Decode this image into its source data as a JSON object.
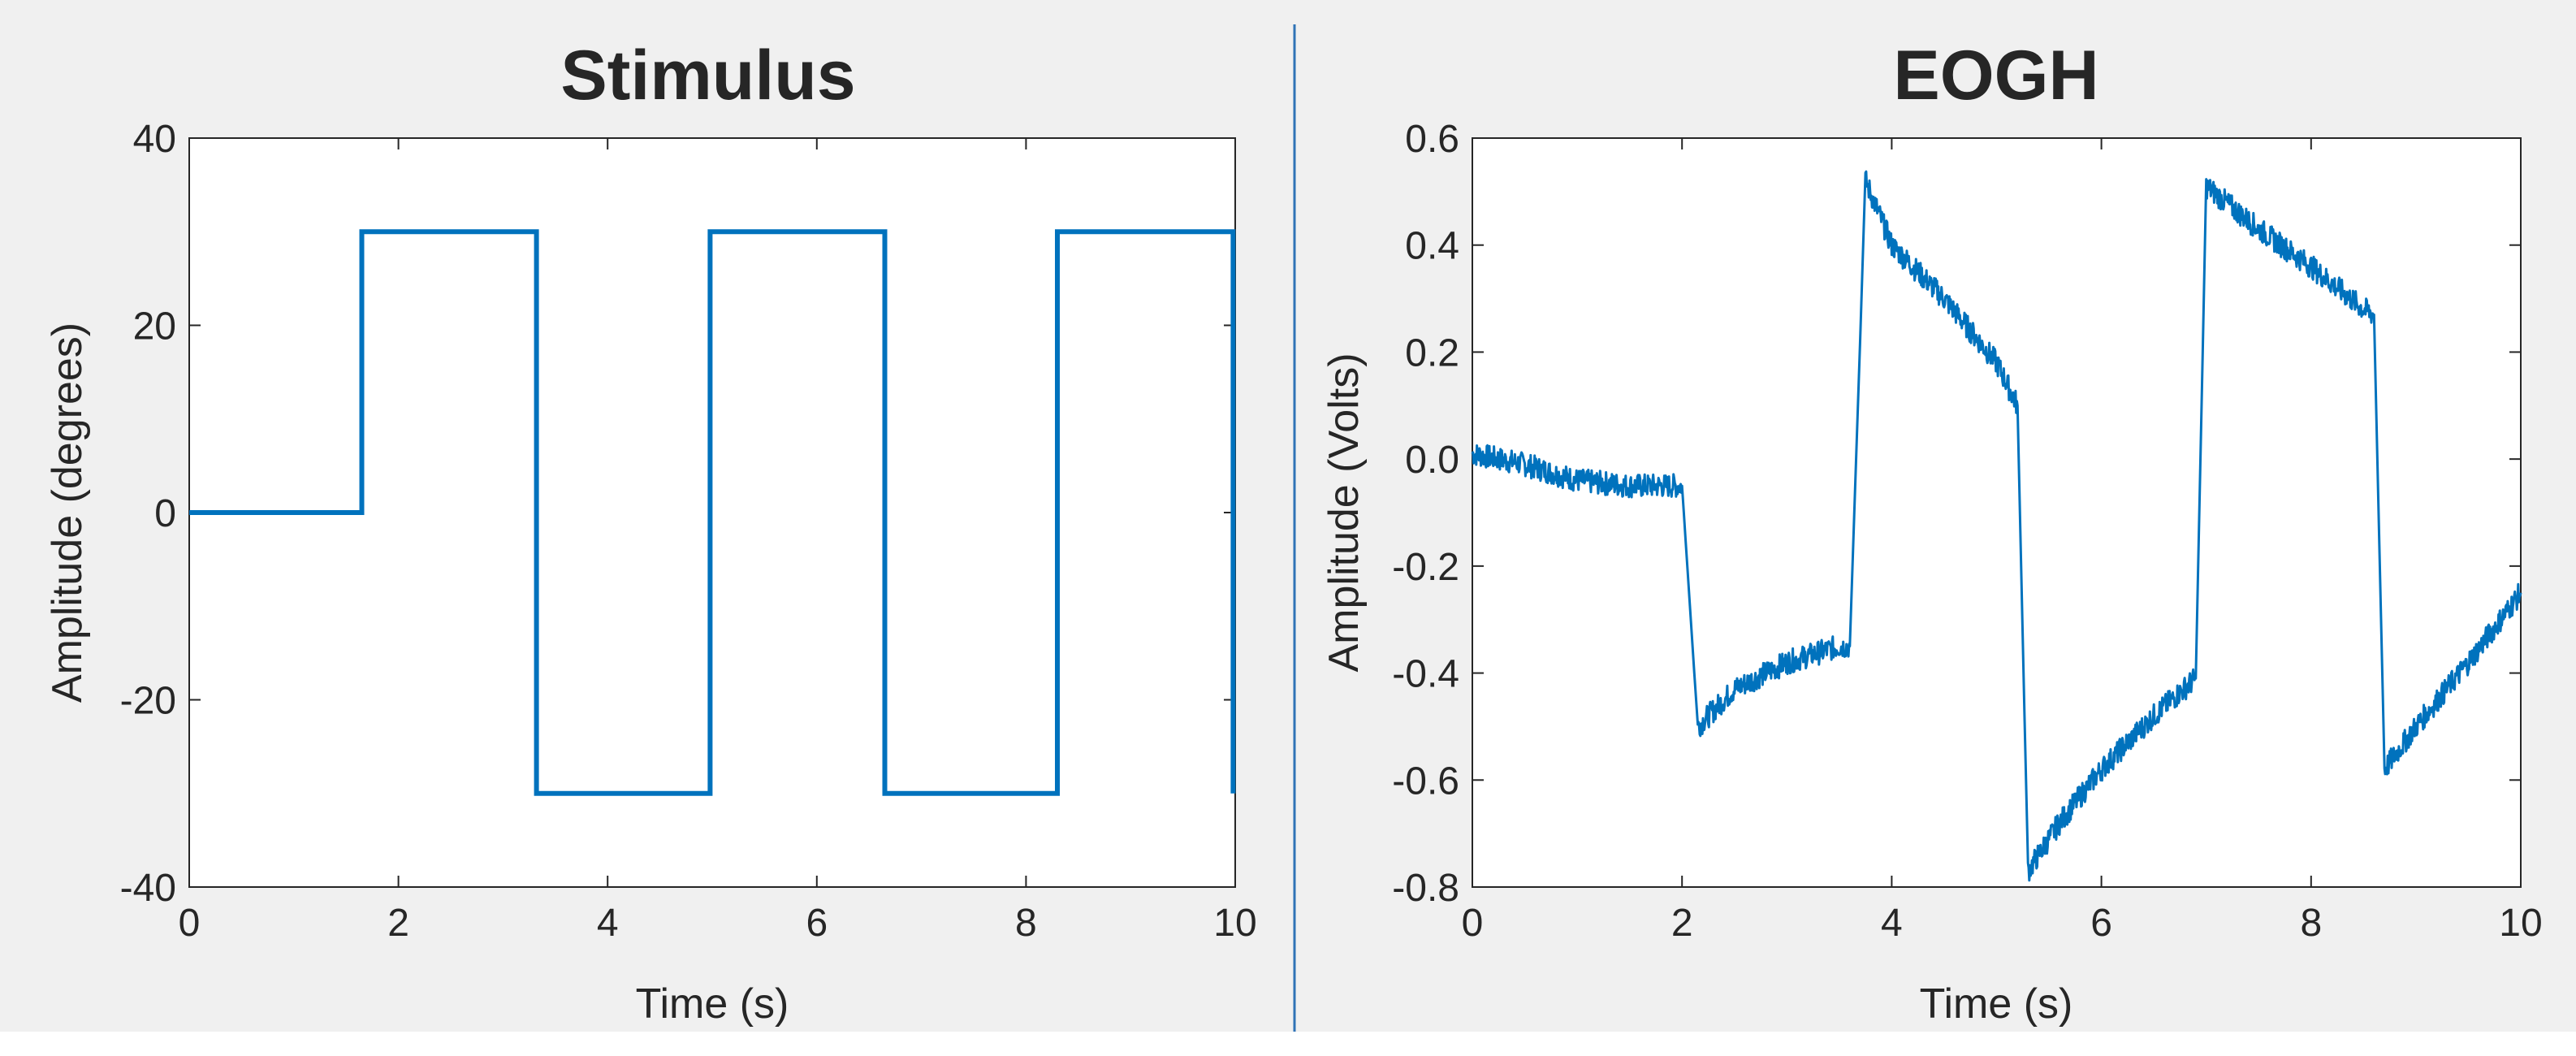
{
  "colors": {
    "figure_background": "#f0f0f0",
    "axes_background": "#ffffff",
    "axis_color": "#262626",
    "line_color": "#0072bd",
    "divider_color": "#2f73b6",
    "bottom_strip": "#ffffff"
  },
  "chart_data": [
    {
      "type": "line",
      "title": "Stimulus",
      "xlabel": "Time (s)",
      "ylabel": "Amplitude (degrees)",
      "xlim": [
        0,
        10
      ],
      "ylim": [
        -40,
        40
      ],
      "xticks": [
        0,
        2,
        4,
        6,
        8,
        10
      ],
      "yticks": [
        -40,
        -20,
        0,
        20,
        40
      ],
      "grid": false,
      "series": [
        {
          "x": [
            0,
            1.65,
            1.65,
            3.32,
            3.32,
            4.98,
            4.98,
            6.65,
            6.65,
            8.3,
            8.3,
            9.98,
            9.98
          ],
          "y": [
            0,
            0,
            30,
            30,
            -30,
            -30,
            30,
            30,
            -30,
            -30,
            30,
            30,
            -30
          ]
        }
      ]
    },
    {
      "type": "line",
      "title": "EOGH",
      "xlabel": "Time (s)",
      "ylabel": "Amplitude (Volts)",
      "xlim": [
        0,
        10
      ],
      "ylim": [
        -0.8,
        0.6
      ],
      "xticks": [
        0,
        2,
        4,
        6,
        8,
        10
      ],
      "yticks": [
        -0.8,
        -0.6,
        -0.4,
        -0.2,
        0,
        0.2,
        0.4,
        0.6
      ],
      "grid": false,
      "series": [
        {
          "x": [
            0,
            0.5,
            1.0,
            1.5,
            2.0,
            2.05,
            2.15,
            2.5,
            3.0,
            3.5,
            3.6,
            3.75,
            4.0,
            4.5,
            5.0,
            5.2,
            5.3,
            5.6,
            6.0,
            6.5,
            6.9,
            7.0,
            7.5,
            8.0,
            8.5,
            8.6,
            8.7,
            9.0,
            9.5,
            10.0
          ],
          "y": [
            0.01,
            -0.01,
            -0.04,
            -0.05,
            -0.05,
            -0.2,
            -0.5,
            -0.43,
            -0.38,
            -0.35,
            -0.35,
            0.52,
            0.4,
            0.3,
            0.18,
            0.1,
            -0.77,
            -0.68,
            -0.58,
            -0.48,
            -0.41,
            0.51,
            0.43,
            0.36,
            0.28,
            0.27,
            -0.58,
            -0.5,
            -0.38,
            -0.25
          ]
        }
      ]
    }
  ]
}
